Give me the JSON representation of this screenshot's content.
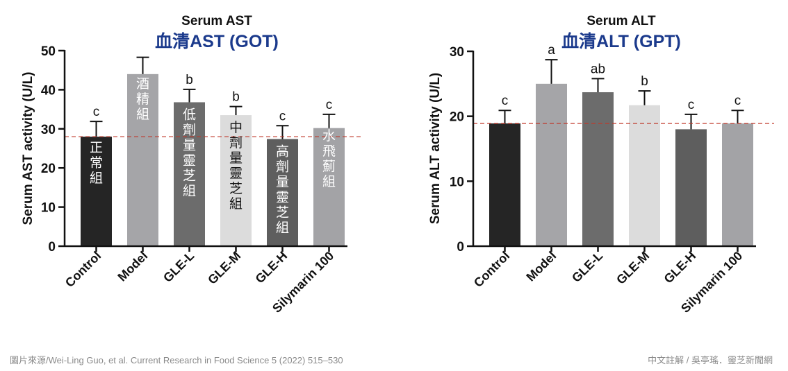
{
  "chart_data": [
    {
      "type": "bar",
      "title": "Serum AST",
      "subtitle": "血清AST (GOT)",
      "ylabel": "Serum AST activity (U/L)",
      "xlabel": "",
      "ylim": [
        0,
        50
      ],
      "yticks": [
        0,
        10,
        20,
        30,
        40,
        50
      ],
      "categories": [
        "Control",
        "Model",
        "GLE-L",
        "GLE-M",
        "GLE-H",
        "Silymarin 100"
      ],
      "values": [
        28,
        44,
        36.8,
        33.5,
        27.4,
        30.2
      ],
      "errors": [
        3.9,
        4.3,
        3.3,
        2.2,
        3.4,
        3.5
      ],
      "letters": [
        "c",
        "",
        "b",
        "b",
        "c",
        "c"
      ],
      "bar_labels": [
        "正常組",
        "酒精組",
        "低劑量靈芝組",
        "中劑量靈芝組",
        "高劑量靈芝組",
        "水飛薊組"
      ],
      "colors": [
        "#252525",
        "#a5a5a8",
        "#6c6c6c",
        "#dcdcdc",
        "#5e5e5e",
        "#a3a3a6"
      ],
      "reference_line": 28
    },
    {
      "type": "bar",
      "title": "Serum ALT",
      "subtitle": "血清ALT (GPT)",
      "ylabel": "Serum ALT activity (U/L)",
      "xlabel": "",
      "ylim": [
        0,
        30
      ],
      "yticks": [
        0,
        10,
        20,
        30
      ],
      "categories": [
        "Control",
        "Model",
        "GLE-L",
        "GLE-M",
        "GLE-H",
        "Silymarin 100"
      ],
      "values": [
        18.9,
        25,
        23.7,
        21.7,
        18,
        18.9
      ],
      "errors": [
        2.0,
        3.7,
        2.1,
        2.2,
        2.3,
        2.0
      ],
      "letters": [
        "c",
        "a",
        "ab",
        "b",
        "c",
        "c"
      ],
      "colors": [
        "#252525",
        "#a5a5a8",
        "#6c6c6c",
        "#dcdcdc",
        "#5e5e5e",
        "#a3a3a6"
      ],
      "reference_line": 18.9
    }
  ],
  "colors": {
    "subtitle": "#1b3a8c",
    "reference_line": "#c0392b",
    "axis": "#111111"
  },
  "footer": {
    "source": "圖片來源/Wei-Ling Guo, et al. Current Research in Food Science 5 (2022) 515–530",
    "credit": "中文註解 / 吳亭瑤．靈芝新聞網"
  }
}
